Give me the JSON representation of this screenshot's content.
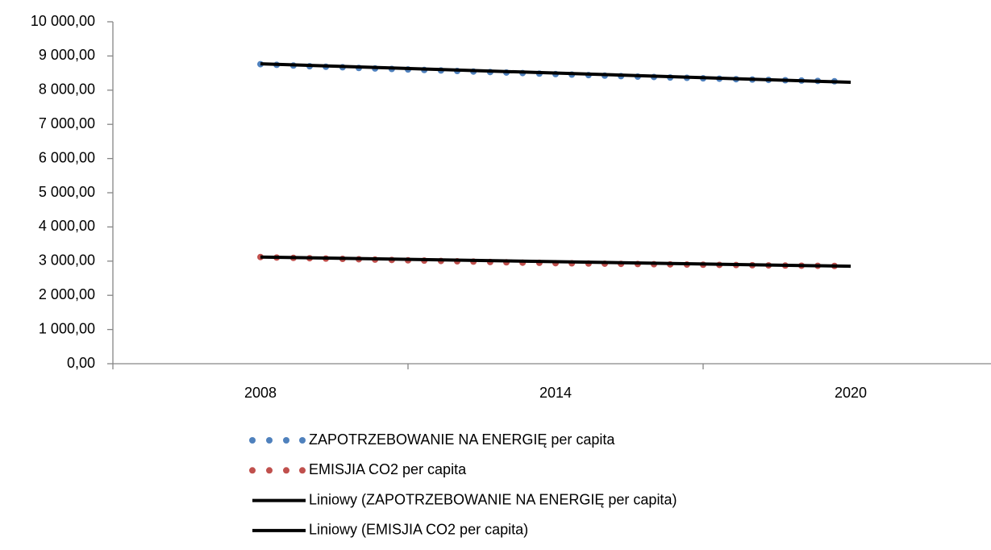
{
  "chart_data": {
    "type": "scatter",
    "xlim": [
      2005,
      2023
    ],
    "xticks": [
      2008,
      2014,
      2020
    ],
    "xtick_marks": [
      2005,
      2011,
      2017,
      2023
    ],
    "ylim": [
      0,
      10000
    ],
    "yticks": [
      {
        "value": 0,
        "label": "0,00"
      },
      {
        "value": 1000,
        "label": "1 000,00"
      },
      {
        "value": 2000,
        "label": "2 000,00"
      },
      {
        "value": 3000,
        "label": "3 000,00"
      },
      {
        "value": 4000,
        "label": "4 000,00"
      },
      {
        "value": 5000,
        "label": "5 000,00"
      },
      {
        "value": 6000,
        "label": "6 000,00"
      },
      {
        "value": 7000,
        "label": "7 000,00"
      },
      {
        "value": 8000,
        "label": "8 000,00"
      },
      {
        "value": 9000,
        "label": "9 000,00"
      },
      {
        "value": 10000,
        "label": "10 000,00"
      }
    ],
    "grid": false,
    "legend": "bottom",
    "series": [
      {
        "name": "ZAPOTRZEBOWANIE NA ENERGIĘ per capita",
        "color": "#4f81bd",
        "type": "scatter",
        "x": [
          2008,
          2008.33,
          2008.67,
          2009,
          2009.33,
          2009.67,
          2010,
          2010.33,
          2010.67,
          2011,
          2011.33,
          2011.67,
          2012,
          2012.33,
          2012.67,
          2013,
          2013.33,
          2013.67,
          2014,
          2014.33,
          2014.67,
          2015,
          2015.33,
          2015.67,
          2016,
          2016.33,
          2016.67,
          2017,
          2017.33,
          2017.67,
          2018,
          2018.33,
          2018.67,
          2019,
          2019.33,
          2019.67
        ],
        "values": [
          8760,
          8740,
          8720,
          8700,
          8685,
          8670,
          8650,
          8635,
          8620,
          8605,
          8590,
          8575,
          8560,
          8545,
          8530,
          8515,
          8500,
          8485,
          8470,
          8455,
          8440,
          8425,
          8410,
          8395,
          8385,
          8370,
          8360,
          8345,
          8335,
          8320,
          8310,
          8300,
          8290,
          8280,
          8270,
          8260
        ]
      },
      {
        "name": "EMISJIA CO2 per capita",
        "color": "#c0504d",
        "type": "scatter",
        "x": [
          2008,
          2008.33,
          2008.67,
          2009,
          2009.33,
          2009.67,
          2010,
          2010.33,
          2010.67,
          2011,
          2011.33,
          2011.67,
          2012,
          2012.33,
          2012.67,
          2013,
          2013.33,
          2013.67,
          2014,
          2014.33,
          2014.67,
          2015,
          2015.33,
          2015.67,
          2016,
          2016.33,
          2016.67,
          2017,
          2017.33,
          2017.67,
          2018,
          2018.33,
          2018.67,
          2019,
          2019.33,
          2019.67
        ],
        "values": [
          3120,
          3105,
          3095,
          3085,
          3075,
          3065,
          3055,
          3045,
          3035,
          3025,
          3015,
          3005,
          2995,
          2985,
          2975,
          2965,
          2955,
          2950,
          2940,
          2935,
          2930,
          2925,
          2920,
          2915,
          2910,
          2905,
          2900,
          2895,
          2890,
          2885,
          2880,
          2875,
          2870,
          2866,
          2863,
          2860
        ]
      },
      {
        "name": "Liniowy (ZAPOTRZEBOWANIE NA ENERGIĘ per capita)",
        "color": "#000000",
        "type": "line",
        "x": [
          2008,
          2020
        ],
        "values": [
          8770,
          8230
        ]
      },
      {
        "name": "Liniowy (EMISJIA CO2 per capita)",
        "color": "#000000",
        "type": "line",
        "x": [
          2008,
          2020
        ],
        "values": [
          3120,
          2850
        ]
      }
    ]
  }
}
